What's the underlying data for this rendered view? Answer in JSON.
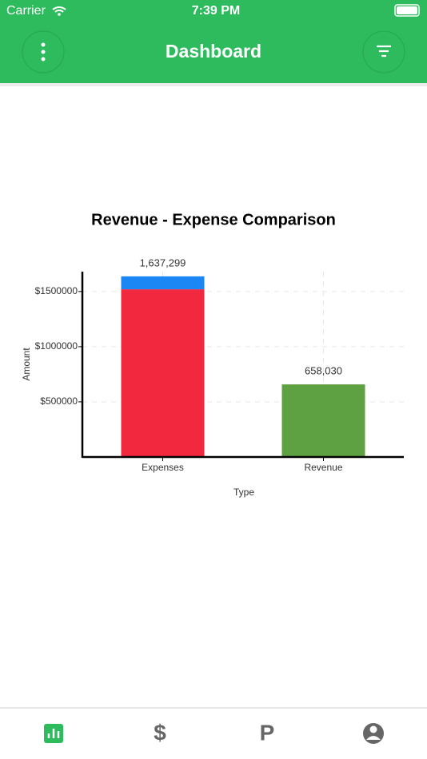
{
  "status_bar": {
    "carrier": "Carrier",
    "time": "7:39 PM"
  },
  "header": {
    "title": "Dashboard"
  },
  "chart_data": {
    "type": "stacked_bar",
    "title": "Revenue - Expense Comparison",
    "x_label": "Type",
    "y_label": "Amount",
    "categories": [
      "Expenses",
      "Revenue"
    ],
    "series": [
      {
        "color": "#f2283f",
        "values": [
          1520000,
          null
        ]
      },
      {
        "color": "#1a87f5",
        "values": [
          117299,
          null
        ]
      },
      {
        "color": "#5ea142",
        "values": [
          null,
          658030
        ]
      }
    ],
    "totals": [
      1637299,
      658030
    ],
    "total_labels": [
      "1,637,299",
      "658,030"
    ],
    "ylim": [
      0,
      1680000
    ],
    "yticks": [
      {
        "value": 500000,
        "label": "$500000"
      },
      {
        "value": 1000000,
        "label": "$1000000"
      },
      {
        "value": 1500000,
        "label": "$1500000"
      }
    ],
    "grid": true
  },
  "tab_bar": {
    "dollar": "$",
    "p": "P"
  }
}
